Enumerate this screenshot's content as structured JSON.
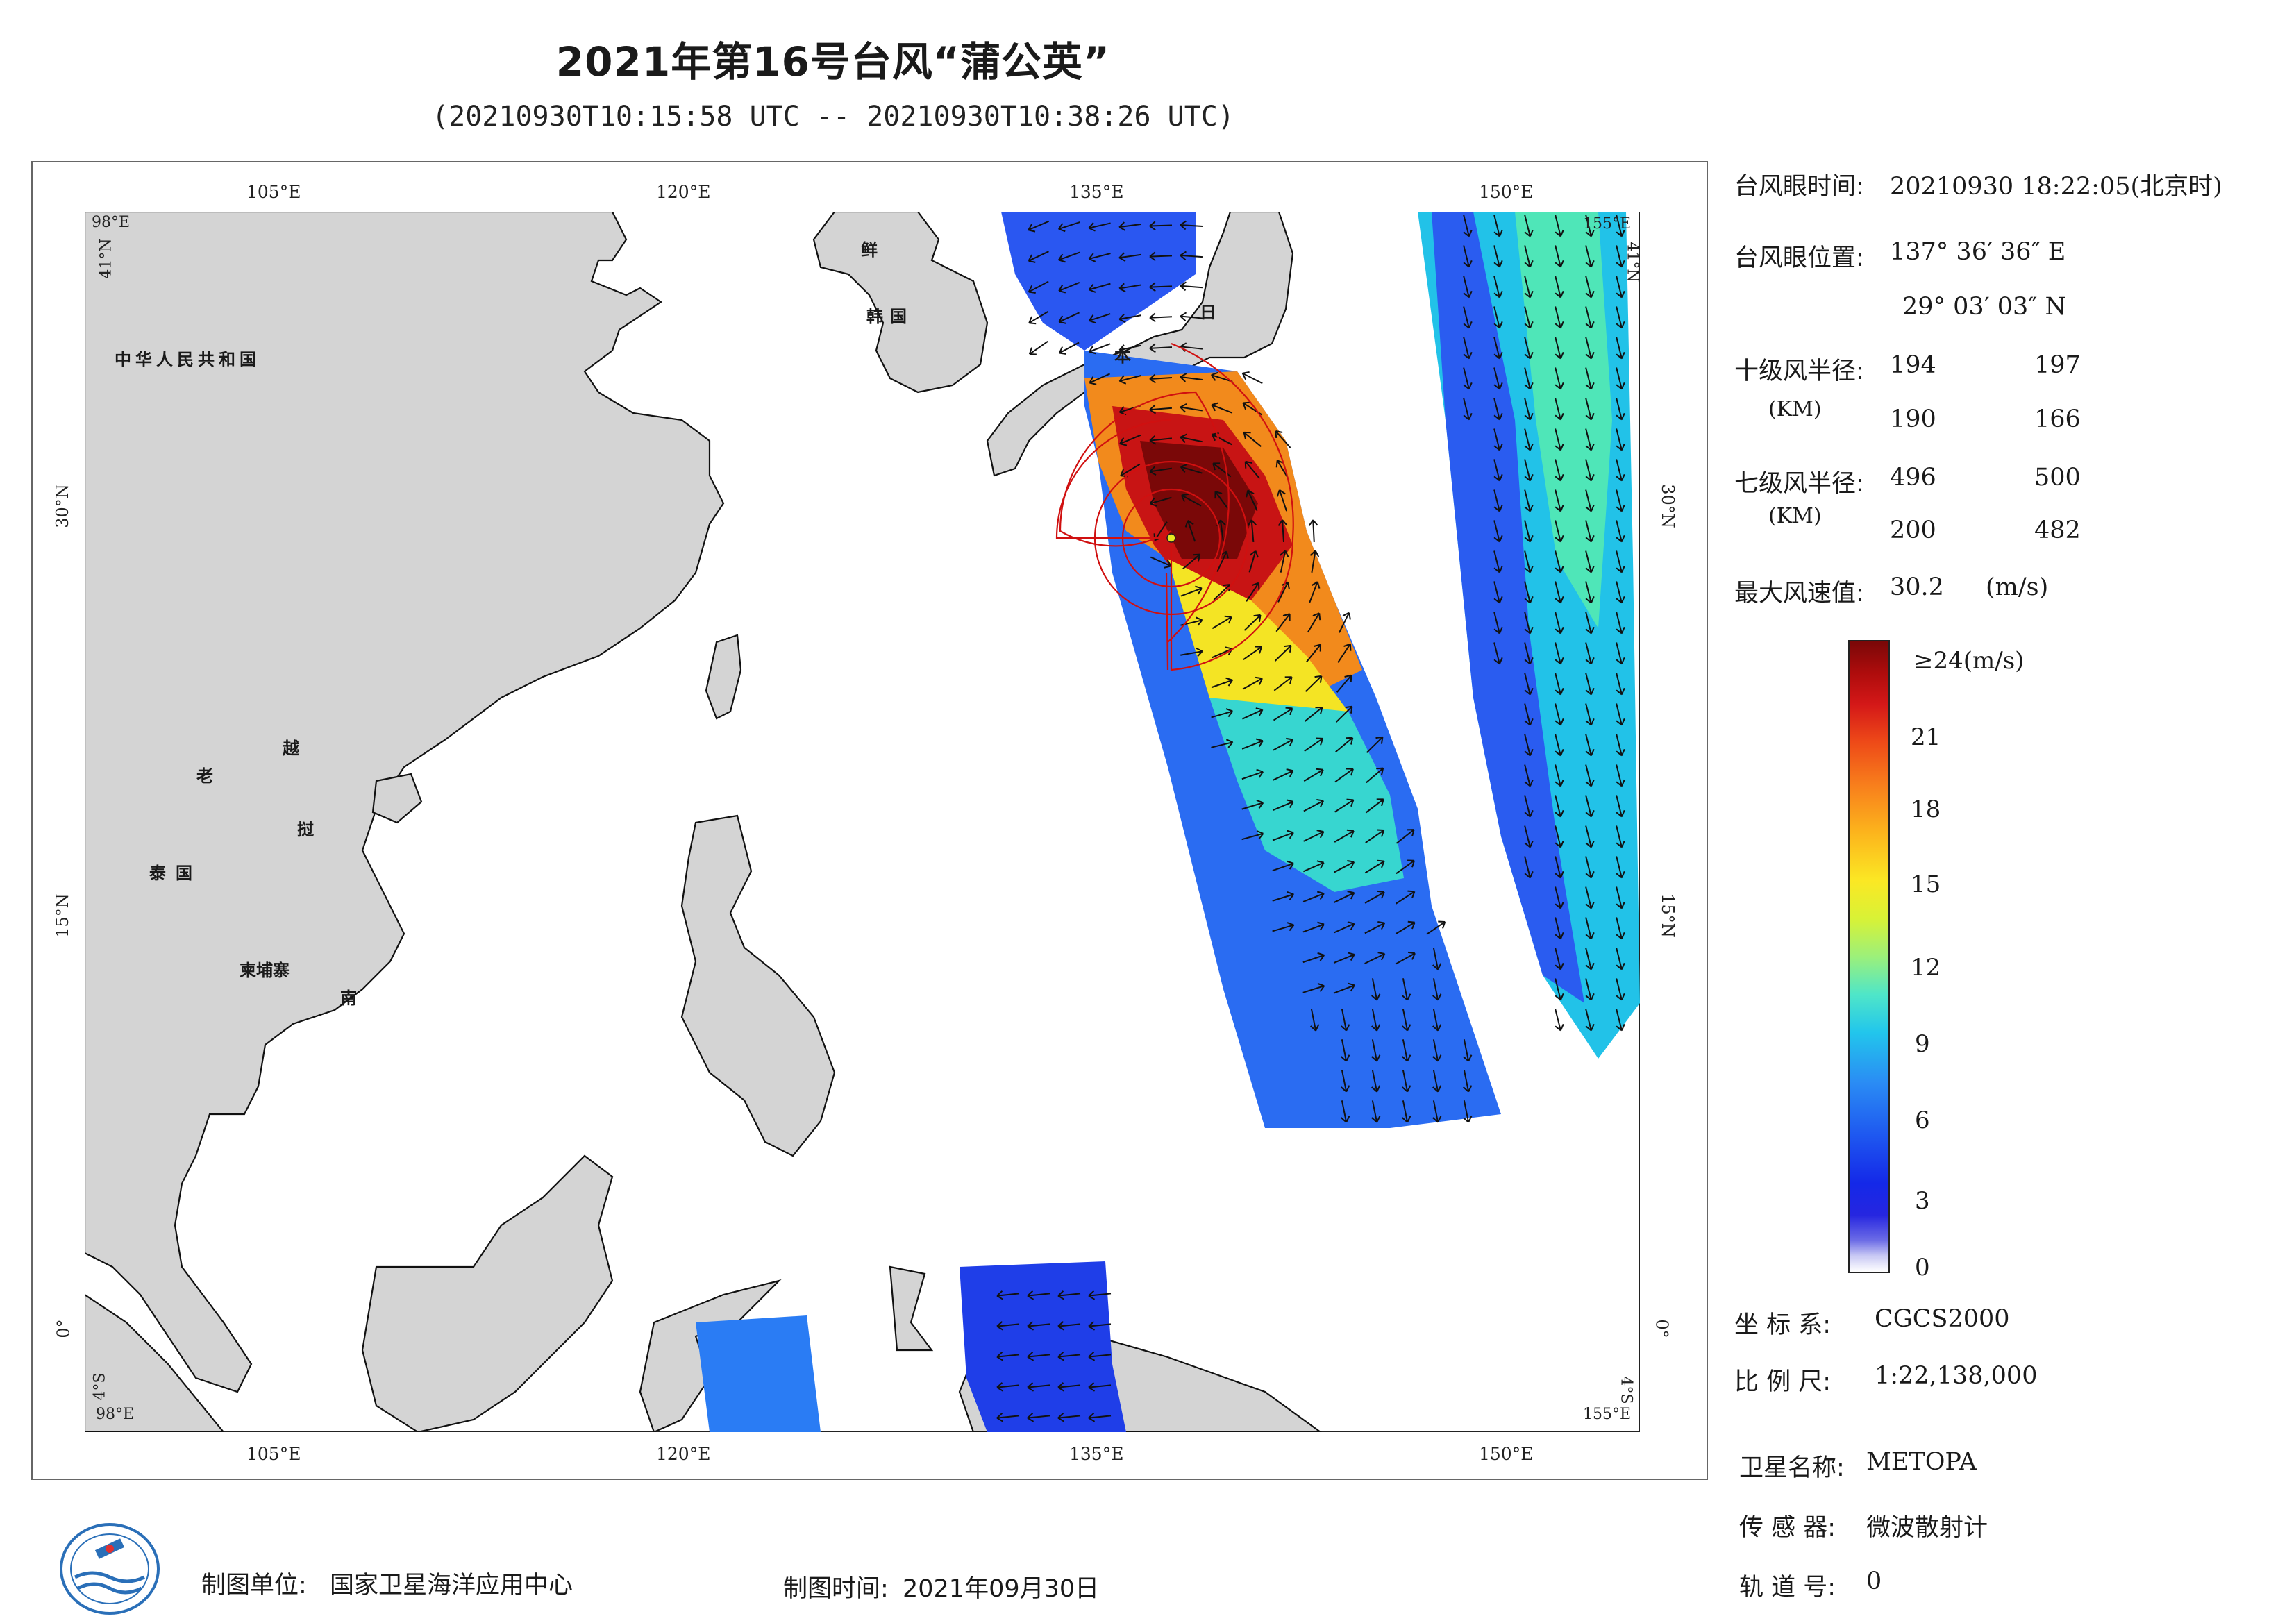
{
  "title": "2021年第16号台风“蒲公英”",
  "subtitle": "(20210930T10:15:58 UTC -- 20210930T10:38:26 UTC)",
  "map": {
    "top_lon_labels": [
      "105°E",
      "120°E",
      "135°E",
      "150°E"
    ],
    "bottom_lon_labels": [
      "105°E",
      "120°E",
      "135°E",
      "150°E"
    ],
    "left_lat_labels": [
      "30°N",
      "15°N",
      "0°"
    ],
    "right_lat_labels": [
      "30°N",
      "15°N",
      "0°"
    ],
    "corner_tl_lon": "98°E",
    "corner_tl_lat": "41°N",
    "corner_tr_lon": "155°E",
    "corner_tr_lat": "41°N",
    "corner_bl_lon": "98°E",
    "corner_bl_lat": "4°S",
    "corner_br_lon": "155°E",
    "corner_br_lat": "4°S",
    "country_labels": {
      "china": "中华人民共和国",
      "korea_n": "鲜",
      "korea": "韩国",
      "japan_1": "日",
      "japan_2": "本",
      "laos": "老",
      "vietnam_1": "越",
      "vietnam_2": "南",
      "thailand": "泰国",
      "cambodia": "柬埔寨",
      "vietnam_mid": "挝"
    },
    "land_color": "#d4d4d4",
    "coast_color": "#111111",
    "radius_color": "#d01010"
  },
  "info": {
    "eye_time_label": "台风眼时间:",
    "eye_time_value": "20210930 18:22:05(北京时)",
    "eye_pos_label": "台风眼位置:",
    "eye_pos_lon": "137° 36′ 36″ E",
    "eye_pos_lat": "29° 03′ 03″ N",
    "r10_label": "十级风半径:",
    "r10_unit": "(KM)",
    "r10_values": [
      "194",
      "197",
      "190",
      "166"
    ],
    "r7_label": "七级风半径:",
    "r7_unit": "(KM)",
    "r7_values": [
      "496",
      "500",
      "200",
      "482"
    ],
    "max_wind_label": "最大风速值:",
    "max_wind_value": "30.2",
    "max_wind_unit": "(m/s)"
  },
  "colorbar": {
    "ticks": [
      "≥24(m/s)",
      "21",
      "18",
      "15",
      "12",
      "9",
      "6",
      "3",
      "0"
    ]
  },
  "meta": {
    "crs_label": "坐 标 系:",
    "crs_value": "CGCS2000",
    "scale_label": "比 例 尺:",
    "scale_value": "1:22,138,000",
    "satellite_label": "卫星名称:",
    "satellite_value": "METOPA",
    "sensor_label": "传 感 器:",
    "sensor_value": "微波散射计",
    "orbit_label": "轨 道 号:",
    "orbit_value": "0"
  },
  "footer": {
    "unit_label": "制图单位:",
    "unit_value": "国家卫星海洋应用中心",
    "time_label": "制图时间:",
    "time_value": "2021年09月30日"
  }
}
